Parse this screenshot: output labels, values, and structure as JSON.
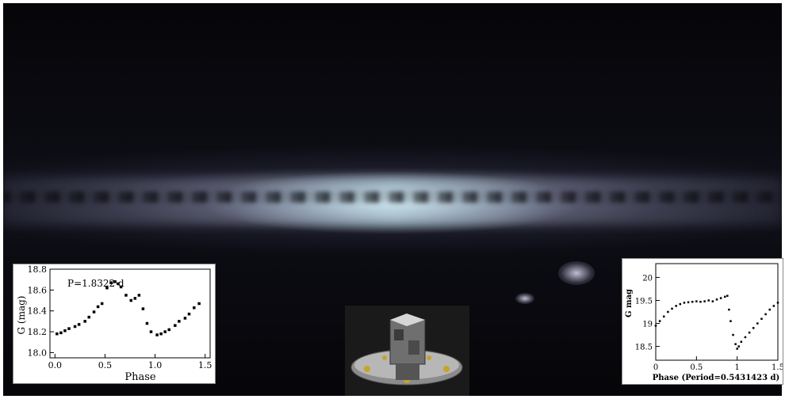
{
  "left_plot": {
    "annotation": "P=1.8322 d",
    "xlabel": "Phase",
    "ylabel": "G (mag)",
    "xticks": [
      "0.0",
      "0.5",
      "1.0",
      "1.5"
    ],
    "yticks": [
      "18.0",
      "18.2",
      "18.4",
      "18.6",
      "18.8"
    ],
    "xlim": [
      -0.05,
      1.55
    ],
    "ylim": [
      18.8,
      17.95
    ],
    "points": [
      [
        0.02,
        18.18
      ],
      [
        0.06,
        18.19
      ],
      [
        0.1,
        18.21
      ],
      [
        0.14,
        18.23
      ],
      [
        0.2,
        18.25
      ],
      [
        0.24,
        18.27
      ],
      [
        0.3,
        18.3
      ],
      [
        0.34,
        18.34
      ],
      [
        0.39,
        18.39
      ],
      [
        0.43,
        18.44
      ],
      [
        0.47,
        18.47
      ],
      [
        0.52,
        18.62
      ],
      [
        0.56,
        18.67
      ],
      [
        0.6,
        18.68
      ],
      [
        0.63,
        18.66
      ],
      [
        0.66,
        18.63
      ],
      [
        0.71,
        18.55
      ],
      [
        0.76,
        18.5
      ],
      [
        0.8,
        18.52
      ],
      [
        0.84,
        18.55
      ],
      [
        0.88,
        18.42
      ],
      [
        0.92,
        18.28
      ],
      [
        0.96,
        18.2
      ],
      [
        1.02,
        18.17
      ],
      [
        1.06,
        18.18
      ],
      [
        1.1,
        18.2
      ],
      [
        1.14,
        18.22
      ],
      [
        1.2,
        18.26
      ],
      [
        1.24,
        18.3
      ],
      [
        1.3,
        18.33
      ],
      [
        1.34,
        18.37
      ],
      [
        1.39,
        18.43
      ],
      [
        1.44,
        18.47
      ]
    ]
  },
  "right_plot": {
    "xlabel": "Phase (Period=0.5431423 d)",
    "ylabel": "G mag",
    "xticks": [
      "0",
      "0.5",
      "1",
      "1.5"
    ],
    "yticks": [
      "18.5",
      "19",
      "19.5",
      "20"
    ],
    "xlim": [
      0,
      1.5
    ],
    "ylim": [
      20.3,
      18.2
    ],
    "points": [
      [
        0.0,
        18.95
      ],
      [
        0.05,
        19.05
      ],
      [
        0.1,
        19.15
      ],
      [
        0.15,
        19.25
      ],
      [
        0.2,
        19.32
      ],
      [
        0.25,
        19.38
      ],
      [
        0.3,
        19.42
      ],
      [
        0.35,
        19.45
      ],
      [
        0.4,
        19.46
      ],
      [
        0.45,
        19.47
      ],
      [
        0.5,
        19.48
      ],
      [
        0.55,
        19.47
      ],
      [
        0.6,
        19.48
      ],
      [
        0.65,
        19.5
      ],
      [
        0.7,
        19.48
      ],
      [
        0.75,
        19.52
      ],
      [
        0.8,
        19.55
      ],
      [
        0.85,
        19.58
      ],
      [
        0.88,
        19.6
      ],
      [
        0.9,
        19.3
      ],
      [
        0.92,
        19.05
      ],
      [
        0.95,
        18.75
      ],
      [
        0.98,
        18.55
      ],
      [
        1.0,
        18.45
      ],
      [
        1.02,
        18.5
      ],
      [
        1.05,
        18.6
      ],
      [
        1.1,
        18.7
      ],
      [
        1.15,
        18.8
      ],
      [
        1.2,
        18.9
      ],
      [
        1.25,
        19.0
      ],
      [
        1.3,
        19.1
      ],
      [
        1.35,
        19.2
      ],
      [
        1.4,
        19.3
      ],
      [
        1.45,
        19.38
      ],
      [
        1.5,
        19.45
      ]
    ]
  }
}
